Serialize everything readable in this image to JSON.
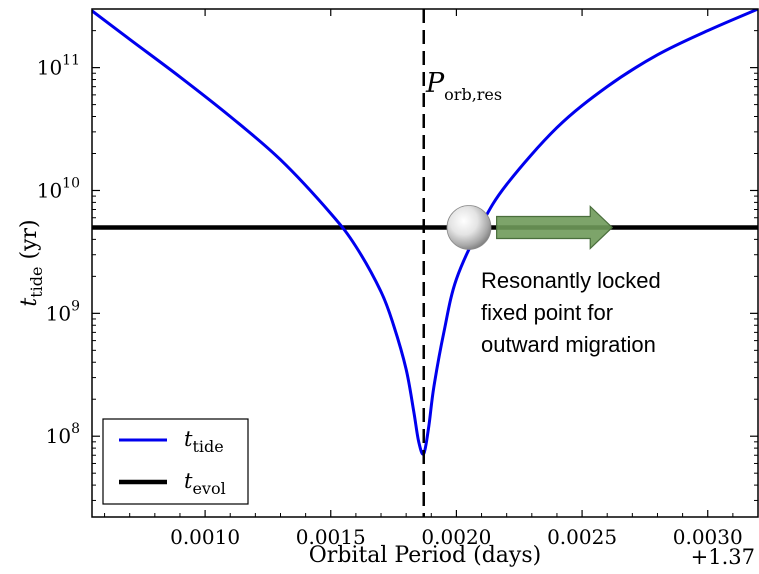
{
  "chart_data": {
    "type": "line",
    "xlabel": "Orbital Period (days)",
    "x_offset_label": "+1.37",
    "ylabel": {
      "main": "t",
      "sub": "tide",
      "unit": " (yr)"
    },
    "yscale": "log",
    "xlim": [
      0.00055,
      0.0032
    ],
    "ylim": [
      22000000.0,
      300000000000.0
    ],
    "x_ticks": [
      {
        "value": 0.001,
        "label": "0.0010"
      },
      {
        "value": 0.0015,
        "label": "0.0015"
      },
      {
        "value": 0.002,
        "label": "0.0020"
      },
      {
        "value": 0.0025,
        "label": "0.0025"
      },
      {
        "value": 0.003,
        "label": "0.0030"
      }
    ],
    "y_ticks": [
      {
        "value": 100000000.0,
        "base": "10",
        "exp": "8"
      },
      {
        "value": 1000000000.0,
        "base": "10",
        "exp": "9"
      },
      {
        "value": 10000000000.0,
        "base": "10",
        "exp": "10"
      },
      {
        "value": 100000000000.0,
        "base": "10",
        "exp": "11"
      }
    ],
    "series": [
      {
        "name_main": "t",
        "name_sub": "tide",
        "color": "#0000ee",
        "x": [
          0.00055,
          0.0007,
          0.0009,
          0.0011,
          0.0013,
          0.0015,
          0.0016,
          0.0017,
          0.00175,
          0.0018,
          0.00183,
          0.00185,
          0.00187,
          0.00189,
          0.00191,
          0.00195,
          0.002,
          0.0021,
          0.0022,
          0.0024,
          0.0026,
          0.0028,
          0.003,
          0.0032
        ],
        "y": [
          290000000000.0,
          170000000000.0,
          84000000000.0,
          40000000000.0,
          17800000000.0,
          6500000000.0,
          3500000000.0,
          1500000000.0,
          800000000.0,
          350000000.0,
          160000000.0,
          90000000.0,
          72000000.0,
          120000000.0,
          250000000.0,
          700000000.0,
          1900000000.0,
          5300000000.0,
          11200000000.0,
          32500000000.0,
          70000000000.0,
          127000000000.0,
          200000000000.0,
          300000000000.0
        ]
      },
      {
        "name_main": "t",
        "name_sub": "evol",
        "color": "#000000",
        "x": [
          0.00055,
          0.0032
        ],
        "y": [
          5000000000.0,
          5000000000.0
        ]
      }
    ],
    "vline": {
      "x": 0.00187,
      "label_main": "P",
      "label_sub": "orb,res"
    },
    "marker": {
      "x": 0.00205,
      "y": 5000000000.0,
      "icon": "planet-sphere-icon"
    },
    "arrow": {
      "x_start": 0.00216,
      "x_end": 0.00262,
      "y": 5000000000.0,
      "color": "#6f9a5a",
      "direction": "right"
    },
    "annotation": {
      "lines": [
        "Resonantly locked",
        "fixed point for",
        "outward migration"
      ]
    },
    "legend": {
      "placement": "lower-left"
    }
  }
}
